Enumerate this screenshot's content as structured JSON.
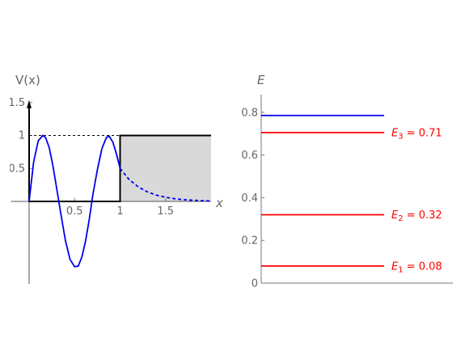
{
  "chart_data": [
    {
      "type": "line",
      "title": "",
      "ylabel": "V(x)",
      "xlabel": "x",
      "xlim": [
        0,
        2
      ],
      "ylim": [
        -1,
        1.5
      ],
      "x_ticks": [
        0.5,
        1,
        1.5
      ],
      "x_tick_labels": [
        "0.5",
        "1",
        "1.5"
      ],
      "y_ticks": [
        0.5,
        1,
        1.5
      ],
      "y_tick_labels": [
        "0.5",
        "1",
        "1.5"
      ],
      "guide_level": 1,
      "well_region": [
        1,
        2
      ],
      "series": [
        {
          "style": "solid",
          "color": "#000000",
          "x": [
            0,
            0,
            1,
            1,
            2
          ],
          "y": [
            1.5,
            0,
            0,
            1,
            1
          ]
        },
        {
          "style": "solid",
          "color": "#0000ee",
          "x": [
            0,
            0.05,
            0.1,
            0.15,
            0.18,
            0.22,
            0.26,
            0.3,
            0.35,
            0.4,
            0.45,
            0.5,
            0.54,
            0.58,
            0.62,
            0.66,
            0.7,
            0.75,
            0.8,
            0.85,
            0.88,
            0.92,
            0.96,
            1.0
          ],
          "y": [
            0,
            0.6,
            0.92,
            1.0,
            0.97,
            0.82,
            0.55,
            0.22,
            -0.2,
            -0.6,
            -0.88,
            -0.99,
            -0.98,
            -0.84,
            -0.6,
            -0.28,
            0.1,
            0.48,
            0.8,
            0.97,
            0.99,
            0.9,
            0.72,
            0.5
          ]
        },
        {
          "style": "dashed",
          "color": "#0000ee",
          "x": [
            1.0,
            1.1,
            1.2,
            1.3,
            1.4,
            1.5,
            1.6,
            1.7,
            1.8,
            1.9,
            2.0
          ],
          "y": [
            0.5,
            0.33,
            0.22,
            0.145,
            0.095,
            0.062,
            0.04,
            0.026,
            0.017,
            0.011,
            0.007
          ]
        }
      ]
    },
    {
      "type": "line",
      "title": "",
      "ylabel": "E",
      "xlabel": "",
      "ylim": [
        0,
        0.9
      ],
      "y_ticks": [
        0,
        0.2,
        0.4,
        0.6,
        0.8
      ],
      "y_tick_labels": [
        "0",
        "0.2",
        "0.4",
        "0.6",
        "0.8"
      ],
      "levels": [
        {
          "value": 0.785,
          "color": "#0000ee",
          "sym": "",
          "sub": "",
          "text": ""
        },
        {
          "value": 0.705,
          "color": "#ff0000",
          "sym": "E",
          "sub": "3",
          "text": " = 0.71"
        },
        {
          "value": 0.32,
          "color": "#ff0000",
          "sym": "E",
          "sub": "2",
          "text": " = 0.32"
        },
        {
          "value": 0.08,
          "color": "#ff0000",
          "sym": "E",
          "sub": "1",
          "text": " = 0.08"
        }
      ]
    }
  ]
}
